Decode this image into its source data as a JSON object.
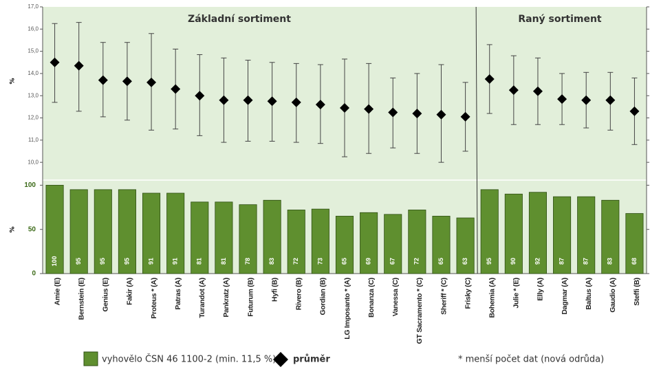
{
  "chart_data": [
    {
      "type": "errorbar",
      "title": "Základní sortiment",
      "values": [
        14.5,
        14.35,
        13.7,
        13.65,
        13.6,
        13.3,
        13.0,
        12.8,
        12.8,
        12.75,
        12.7,
        12.6,
        12.45,
        12.4,
        12.25,
        12.2,
        12.15,
        12.05
      ],
      "max": [
        16.25,
        16.3,
        15.4,
        15.4,
        15.8,
        15.1,
        14.85,
        14.7,
        14.6,
        14.5,
        14.45,
        14.4,
        14.65,
        14.45,
        13.8,
        14.0,
        14.4,
        13.6
      ],
      "min": [
        12.7,
        12.3,
        12.05,
        11.9,
        11.45,
        11.5,
        11.2,
        10.9,
        10.95,
        10.95,
        10.9,
        10.85,
        10.25,
        10.4,
        10.65,
        10.4,
        10.0,
        10.5
      ],
      "ylabel": "%",
      "ylim": [
        9.2,
        17.0
      ],
      "yticks": [
        {
          "value": 10,
          "label": "10,0"
        },
        {
          "value": 11,
          "label": "11,0"
        },
        {
          "value": 12,
          "label": "12,0"
        },
        {
          "value": 13,
          "label": "13,0"
        },
        {
          "value": 14,
          "label": "14,0"
        },
        {
          "value": 15,
          "label": "15,0"
        },
        {
          "value": 16,
          "label": "16,0"
        },
        {
          "value": 17,
          "label": "17,0"
        }
      ],
      "color": "#000000",
      "background": "#e2efda"
    },
    {
      "type": "errorbar",
      "title": "Raný sortiment",
      "values": [
        13.75,
        13.25,
        13.2,
        12.85,
        12.8,
        12.8,
        12.3
      ],
      "max": [
        15.3,
        14.8,
        14.7,
        14.0,
        14.05,
        14.05,
        13.8
      ],
      "min": [
        12.2,
        11.7,
        11.7,
        11.7,
        11.55,
        11.45,
        10.8
      ],
      "color": "#000000",
      "background": "#e2efda"
    },
    {
      "type": "bar",
      "categories": [
        "Amie (E)",
        "Bernstein (E)",
        "Genius (E)",
        "Fakir (A)",
        "Proteus * (A)",
        "Patras (A)",
        "Turandot (A)",
        "Pankratz (A)",
        "Futurum (B)",
        "Hyfi (B)",
        "Rivero (B)",
        "Gordian (B)",
        "LG Imposanto * (A)",
        "Bonanza (C)",
        "Vanessa (C)",
        "GT Sacramento * (C)",
        "Sheriff * (C)",
        "Frisky (C)",
        "Bohemia (A)",
        "Julie * (E)",
        "Elly (A)",
        "Dagmar (A)",
        "Baltus (A)",
        "Gaudio (A)",
        "Steffi (B)"
      ],
      "values": [
        100,
        95,
        95,
        95,
        91,
        91,
        81,
        81,
        78,
        83,
        72,
        73,
        65,
        69,
        67,
        72,
        65,
        63,
        95,
        90,
        92,
        87,
        87,
        83,
        68
      ],
      "ylabel": "%",
      "ylim": [
        0,
        105
      ],
      "yticks": [
        0,
        50,
        100
      ],
      "color": "#5f8f2f",
      "background": "#e2efda"
    }
  ],
  "legend": {
    "bar": "vyhovělo ČSN 46 1100-2 (min. 11,5 %)",
    "mean": "průměr",
    "note": "* menší počet dat (nová odrůda)"
  }
}
